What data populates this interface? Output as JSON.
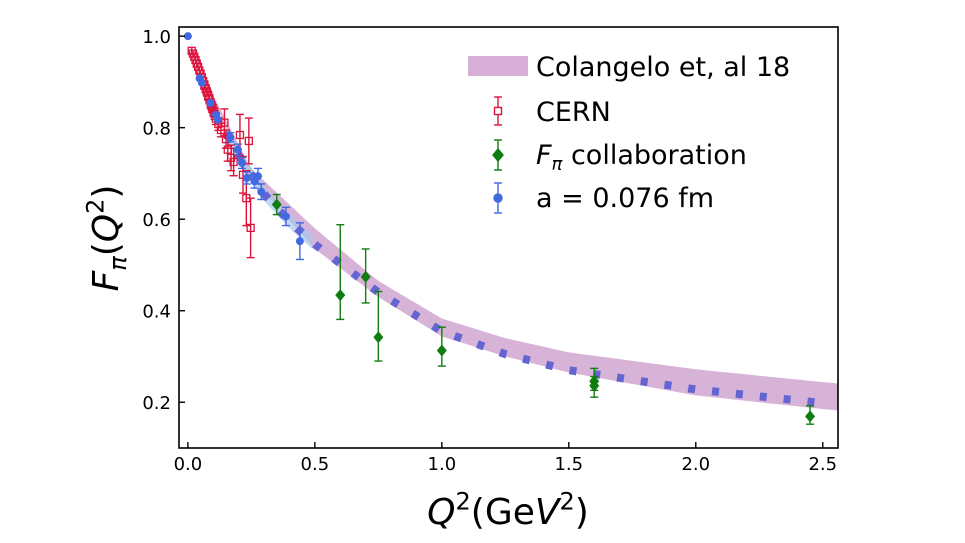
{
  "chart_data": {
    "type": "scatter",
    "xlabel": "Q^2(GeV^2)",
    "ylabel": "F_π(Q^2)",
    "xlim": [
      -0.035,
      2.56
    ],
    "ylim": [
      0.1,
      1.02
    ],
    "xticks": [
      "0.0",
      "0.5",
      "1.0",
      "1.5",
      "2.0",
      "2.5"
    ],
    "xtick_values": [
      0,
      0.5,
      1.0,
      1.5,
      2.0,
      2.5
    ],
    "yticks": [
      "0.2",
      "0.4",
      "0.6",
      "0.8",
      "1.0"
    ],
    "ytick_values": [
      0.2,
      0.4,
      0.6,
      0.8,
      1.0
    ],
    "grid": false,
    "legend_position": "top-right",
    "legend": [
      {
        "label": "Colangelo et, al 18",
        "marker": "band",
        "color": "#c893c8"
      },
      {
        "label": "CERN",
        "marker": "open-square",
        "color": "#dc143c"
      },
      {
        "label": "F_π collaboration",
        "marker": "diamond",
        "color": "#0f7d0f"
      },
      {
        "label": "a = 0.076 fm",
        "marker": "circle",
        "color": "#4169e1"
      }
    ],
    "band": {
      "name": "Colangelo et, al 18",
      "color": "#c893c8",
      "x": [
        0,
        0.1,
        0.25,
        0.5,
        0.75,
        1.0,
        1.25,
        1.5,
        2.0,
        2.5,
        2.56
      ],
      "upper": [
        1.0,
        0.87,
        0.71,
        0.58,
        0.465,
        0.383,
        0.34,
        0.309,
        0.272,
        0.244,
        0.241
      ],
      "lower": [
        1.0,
        0.86,
        0.69,
        0.535,
        0.43,
        0.344,
        0.3,
        0.265,
        0.215,
        0.185,
        0.182
      ]
    },
    "lattice_curve": {
      "color": "#6464d2",
      "x": [
        0.15,
        0.2,
        0.3,
        0.4,
        0.5,
        0.75,
        1.0,
        1.25,
        1.5,
        2.0,
        2.5
      ],
      "y": [
        0.79,
        0.74,
        0.655,
        0.595,
        0.545,
        0.44,
        0.355,
        0.305,
        0.27,
        0.228,
        0.198
      ],
      "err_band_color": "#a8c8f0"
    },
    "series": [
      {
        "name": "CERN",
        "marker": "open-square",
        "color": "#dc143c",
        "points": [
          {
            "x": 0.015,
            "y": 0.968,
            "err": 0.006
          },
          {
            "x": 0.02,
            "y": 0.962,
            "err": 0.006
          },
          {
            "x": 0.025,
            "y": 0.955,
            "err": 0.006
          },
          {
            "x": 0.03,
            "y": 0.948,
            "err": 0.006
          },
          {
            "x": 0.035,
            "y": 0.94,
            "err": 0.007
          },
          {
            "x": 0.04,
            "y": 0.933,
            "err": 0.007
          },
          {
            "x": 0.045,
            "y": 0.925,
            "err": 0.007
          },
          {
            "x": 0.05,
            "y": 0.918,
            "err": 0.008
          },
          {
            "x": 0.055,
            "y": 0.91,
            "err": 0.008
          },
          {
            "x": 0.06,
            "y": 0.902,
            "err": 0.008
          },
          {
            "x": 0.065,
            "y": 0.893,
            "err": 0.009
          },
          {
            "x": 0.07,
            "y": 0.885,
            "err": 0.009
          },
          {
            "x": 0.075,
            "y": 0.878,
            "err": 0.009
          },
          {
            "x": 0.08,
            "y": 0.87,
            "err": 0.01
          },
          {
            "x": 0.085,
            "y": 0.862,
            "err": 0.01
          },
          {
            "x": 0.09,
            "y": 0.852,
            "err": 0.011
          },
          {
            "x": 0.095,
            "y": 0.845,
            "err": 0.011
          },
          {
            "x": 0.1,
            "y": 0.838,
            "err": 0.012
          },
          {
            "x": 0.105,
            "y": 0.83,
            "err": 0.012
          },
          {
            "x": 0.11,
            "y": 0.82,
            "err": 0.013
          },
          {
            "x": 0.12,
            "y": 0.808,
            "err": 0.014
          },
          {
            "x": 0.13,
            "y": 0.795,
            "err": 0.015
          },
          {
            "x": 0.144,
            "y": 0.811,
            "err": 0.03
          },
          {
            "x": 0.15,
            "y": 0.775,
            "err": 0.02
          },
          {
            "x": 0.157,
            "y": 0.752,
            "err": 0.025
          },
          {
            "x": 0.17,
            "y": 0.734,
            "err": 0.028
          },
          {
            "x": 0.18,
            "y": 0.725,
            "err": 0.03
          },
          {
            "x": 0.205,
            "y": 0.784,
            "err": 0.045
          },
          {
            "x": 0.217,
            "y": 0.697,
            "err": 0.04
          },
          {
            "x": 0.23,
            "y": 0.646,
            "err": 0.06
          },
          {
            "x": 0.24,
            "y": 0.771,
            "err": 0.05
          },
          {
            "x": 0.247,
            "y": 0.581,
            "err": 0.065
          }
        ]
      },
      {
        "name": "F_π collaboration",
        "marker": "diamond",
        "color": "#0f7d0f",
        "points": [
          {
            "x": 0.35,
            "y": 0.632,
            "err_lo": 0.022,
            "err_hi": 0.022
          },
          {
            "x": 0.6,
            "y": 0.434,
            "err_lo": 0.053,
            "err_hi": 0.154
          },
          {
            "x": 0.7,
            "y": 0.474,
            "err_lo": 0.057,
            "err_hi": 0.061
          },
          {
            "x": 0.75,
            "y": 0.342,
            "err_lo": 0.052,
            "err_hi": 0.1
          },
          {
            "x": 1.0,
            "y": 0.313,
            "err_lo": 0.034,
            "err_hi": 0.051
          },
          {
            "x": 1.6,
            "y": 0.246,
            "err_lo": 0.02,
            "err_hi": 0.028
          },
          {
            "x": 1.6,
            "y": 0.236,
            "err_lo": 0.025,
            "err_hi": 0.02
          },
          {
            "x": 2.45,
            "y": 0.169,
            "err_lo": 0.017,
            "err_hi": 0.023
          }
        ]
      },
      {
        "name": "a = 0.076 fm",
        "marker": "circle",
        "color": "#4169e1",
        "points": [
          {
            "x": 0.0,
            "y": 1.0,
            "err": 0.002
          },
          {
            "x": 0.046,
            "y": 0.908,
            "err": 0.006
          },
          {
            "x": 0.055,
            "y": 0.898,
            "err": 0.006
          },
          {
            "x": 0.089,
            "y": 0.854,
            "err": 0.007
          },
          {
            "x": 0.111,
            "y": 0.828,
            "err": 0.008
          },
          {
            "x": 0.118,
            "y": 0.817,
            "err": 0.008
          },
          {
            "x": 0.167,
            "y": 0.779,
            "err": 0.01
          },
          {
            "x": 0.197,
            "y": 0.752,
            "err": 0.012
          },
          {
            "x": 0.213,
            "y": 0.723,
            "err": 0.012
          },
          {
            "x": 0.232,
            "y": 0.69,
            "err": 0.013
          },
          {
            "x": 0.262,
            "y": 0.683,
            "err": 0.015
          },
          {
            "x": 0.276,
            "y": 0.694,
            "err": 0.017
          },
          {
            "x": 0.289,
            "y": 0.66,
            "err": 0.017
          },
          {
            "x": 0.386,
            "y": 0.606,
            "err": 0.02
          },
          {
            "x": 0.441,
            "y": 0.552,
            "err": 0.04
          }
        ]
      }
    ]
  }
}
